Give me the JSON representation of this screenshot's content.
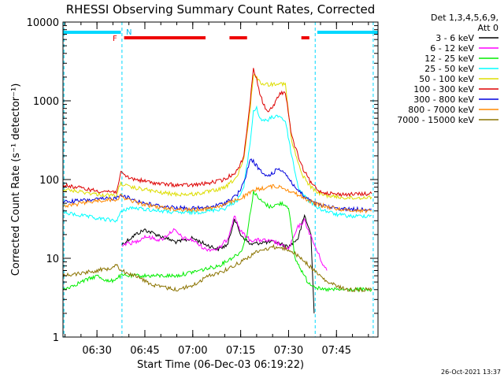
{
  "chart_data": {
    "type": "line",
    "title": "RHESSI Observing Summary Count Rates, Corrected",
    "xlabel": "Start Time (06-Dec-03 06:19:22)",
    "ylabel": "Corrected Count Rate (s⁻¹ detector⁻¹)",
    "y_scale": "log",
    "xlim": [
      "06:19:22",
      "07:58:00"
    ],
    "ylim": [
      1,
      10000
    ],
    "x_ticks": [
      "06:30",
      "06:45",
      "07:00",
      "07:15",
      "07:30",
      "07:45"
    ],
    "y_ticks": [
      "1",
      "10",
      "100",
      "1000",
      "10000"
    ],
    "legend": {
      "placement": "right",
      "header": [
        "Det 1,3,4,5,6,9,",
        "Att 0"
      ]
    },
    "timestamp": "26-Oct-2021 13:37",
    "flags": {
      "N_label": "N",
      "F_label": "F",
      "night_bars": [
        [
          "06:19:22",
          "06:37:30"
        ],
        [
          "07:39:00",
          "07:58:00"
        ]
      ],
      "flare_bars": [
        [
          "06:38:30",
          "07:04:00"
        ],
        [
          "07:11:30",
          "07:17:00"
        ],
        [
          "07:34:00",
          "07:36:30"
        ]
      ],
      "saa_lines": [
        "06:19:40",
        "06:37:50",
        "07:38:20",
        "07:56:30"
      ]
    },
    "series": [
      {
        "name": "3 - 6 keV",
        "color": "#000000",
        "points": [
          [
            "06:37:50",
            15
          ],
          [
            "06:42",
            20
          ],
          [
            "06:45",
            23
          ],
          [
            "06:50",
            19
          ],
          [
            "06:55",
            16
          ],
          [
            "07:00",
            18
          ],
          [
            "07:04",
            15
          ],
          [
            "07:08",
            13
          ],
          [
            "07:11",
            15
          ],
          [
            "07:13",
            32
          ],
          [
            "07:15",
            20
          ],
          [
            "07:18",
            15
          ],
          [
            "07:22",
            16
          ],
          [
            "07:26",
            16
          ],
          [
            "07:30",
            14
          ],
          [
            "07:33",
            18
          ],
          [
            "07:35",
            35
          ],
          [
            "07:37",
            20
          ],
          [
            "07:38",
            2
          ]
        ]
      },
      {
        "name": "6 - 12 keV",
        "color": "#ff00ff",
        "points": [
          [
            "06:37:50",
            15
          ],
          [
            "06:42",
            16
          ],
          [
            "06:45",
            19
          ],
          [
            "06:50",
            17
          ],
          [
            "06:54",
            23
          ],
          [
            "06:57",
            18
          ],
          [
            "07:00",
            17
          ],
          [
            "07:04",
            13
          ],
          [
            "07:08",
            13
          ],
          [
            "07:11",
            18
          ],
          [
            "07:13",
            35
          ],
          [
            "07:15",
            22
          ],
          [
            "07:18",
            17
          ],
          [
            "07:22",
            17
          ],
          [
            "07:26",
            16
          ],
          [
            "07:30",
            13
          ],
          [
            "07:33",
            25
          ],
          [
            "07:35",
            30
          ],
          [
            "07:38",
            15
          ],
          [
            "07:41",
            8
          ],
          [
            "07:42",
            7
          ]
        ]
      },
      {
        "name": "12 - 25 keV",
        "color": "#00ee00",
        "points": [
          [
            "06:19:22",
            4
          ],
          [
            "06:25",
            5
          ],
          [
            "06:30",
            6
          ],
          [
            "06:34",
            5
          ],
          [
            "06:37:30",
            6
          ],
          [
            "06:45",
            6
          ],
          [
            "06:55",
            6
          ],
          [
            "07:02",
            7
          ],
          [
            "07:08",
            8
          ],
          [
            "07:12",
            10
          ],
          [
            "07:15",
            12
          ],
          [
            "07:17",
            20
          ],
          [
            "07:19",
            70
          ],
          [
            "07:21",
            55
          ],
          [
            "07:24",
            45
          ],
          [
            "07:28",
            50
          ],
          [
            "07:30",
            45
          ],
          [
            "07:32",
            10
          ],
          [
            "07:36",
            5
          ],
          [
            "07:40",
            4
          ],
          [
            "07:48",
            4
          ],
          [
            "07:56",
            4
          ]
        ]
      },
      {
        "name": "25 - 50 keV",
        "color": "#00ffff",
        "points": [
          [
            "06:19:22",
            38
          ],
          [
            "06:25",
            35
          ],
          [
            "06:30",
            32
          ],
          [
            "06:36",
            30
          ],
          [
            "06:37:30",
            38
          ],
          [
            "06:40",
            44
          ],
          [
            "06:45",
            42
          ],
          [
            "06:50",
            40
          ],
          [
            "06:55",
            38
          ],
          [
            "07:00",
            38
          ],
          [
            "07:05",
            40
          ],
          [
            "07:10",
            43
          ],
          [
            "07:14",
            55
          ],
          [
            "07:16",
            80
          ],
          [
            "07:18",
            300
          ],
          [
            "07:19",
            750
          ],
          [
            "07:20",
            800
          ],
          [
            "07:21",
            600
          ],
          [
            "07:23",
            550
          ],
          [
            "07:25",
            620
          ],
          [
            "07:27",
            650
          ],
          [
            "07:29",
            550
          ],
          [
            "07:31",
            200
          ],
          [
            "07:33",
            80
          ],
          [
            "07:36",
            55
          ],
          [
            "07:40",
            42
          ],
          [
            "07:45",
            36
          ],
          [
            "07:50",
            34
          ],
          [
            "07:56",
            35
          ]
        ]
      },
      {
        "name": "50 - 100 keV",
        "color": "#dddd00",
        "points": [
          [
            "06:19:22",
            75
          ],
          [
            "06:25",
            70
          ],
          [
            "06:30",
            65
          ],
          [
            "06:36",
            62
          ],
          [
            "06:37:30",
            90
          ],
          [
            "06:40",
            80
          ],
          [
            "06:45",
            75
          ],
          [
            "06:50",
            68
          ],
          [
            "06:55",
            65
          ],
          [
            "07:00",
            65
          ],
          [
            "07:05",
            70
          ],
          [
            "07:10",
            78
          ],
          [
            "07:14",
            110
          ],
          [
            "07:16",
            180
          ],
          [
            "07:18",
            800
          ],
          [
            "07:19",
            2200
          ],
          [
            "07:20",
            2000
          ],
          [
            "07:21",
            1700
          ],
          [
            "07:24",
            1600
          ],
          [
            "07:27",
            1700
          ],
          [
            "07:29",
            1600
          ],
          [
            "07:31",
            300
          ],
          [
            "07:34",
            120
          ],
          [
            "07:37",
            80
          ],
          [
            "07:40",
            65
          ],
          [
            "07:45",
            60
          ],
          [
            "07:50",
            58
          ],
          [
            "07:56",
            60
          ]
        ]
      },
      {
        "name": "100 - 300 keV",
        "color": "#dd0000",
        "points": [
          [
            "06:19:22",
            85
          ],
          [
            "06:25",
            78
          ],
          [
            "06:30",
            72
          ],
          [
            "06:36",
            70
          ],
          [
            "06:37:30",
            120
          ],
          [
            "06:40",
            105
          ],
          [
            "06:45",
            95
          ],
          [
            "06:50",
            88
          ],
          [
            "06:55",
            85
          ],
          [
            "07:00",
            85
          ],
          [
            "07:05",
            90
          ],
          [
            "07:10",
            100
          ],
          [
            "07:14",
            130
          ],
          [
            "07:16",
            200
          ],
          [
            "07:18",
            1000
          ],
          [
            "07:19",
            2500
          ],
          [
            "07:20",
            2000
          ],
          [
            "07:21",
            1200
          ],
          [
            "07:23",
            750
          ],
          [
            "07:25",
            800
          ],
          [
            "07:27",
            1200
          ],
          [
            "07:29",
            1300
          ],
          [
            "07:31",
            350
          ],
          [
            "07:34",
            150
          ],
          [
            "07:37",
            90
          ],
          [
            "07:40",
            70
          ],
          [
            "07:45",
            65
          ],
          [
            "07:50",
            65
          ],
          [
            "07:56",
            66
          ]
        ]
      },
      {
        "name": "300 - 800 keV",
        "color": "#0000dd",
        "points": [
          [
            "06:19:22",
            52
          ],
          [
            "06:25",
            54
          ],
          [
            "06:30",
            56
          ],
          [
            "06:36",
            58
          ],
          [
            "06:37:30",
            65
          ],
          [
            "06:40",
            58
          ],
          [
            "06:45",
            50
          ],
          [
            "06:50",
            46
          ],
          [
            "06:55",
            44
          ],
          [
            "07:00",
            43
          ],
          [
            "07:05",
            44
          ],
          [
            "07:10",
            50
          ],
          [
            "07:14",
            65
          ],
          [
            "07:16",
            90
          ],
          [
            "07:18",
            180
          ],
          [
            "07:19",
            170
          ],
          [
            "07:21",
            130
          ],
          [
            "07:23",
            110
          ],
          [
            "07:25",
            120
          ],
          [
            "07:27",
            140
          ],
          [
            "07:29",
            120
          ],
          [
            "07:32",
            80
          ],
          [
            "07:35",
            60
          ],
          [
            "07:38",
            50
          ],
          [
            "07:42",
            45
          ],
          [
            "07:48",
            42
          ],
          [
            "07:56",
            42
          ]
        ]
      },
      {
        "name": "800 - 7000 keV",
        "color": "#ff8800",
        "points": [
          [
            "06:19:22",
            45
          ],
          [
            "06:25",
            50
          ],
          [
            "06:30",
            54
          ],
          [
            "06:36",
            56
          ],
          [
            "06:37:30",
            62
          ],
          [
            "06:40",
            55
          ],
          [
            "06:45",
            48
          ],
          [
            "06:50",
            44
          ],
          [
            "06:55",
            42
          ],
          [
            "07:00",
            41
          ],
          [
            "07:05",
            43
          ],
          [
            "07:10",
            48
          ],
          [
            "07:15",
            58
          ],
          [
            "07:20",
            75
          ],
          [
            "07:25",
            82
          ],
          [
            "07:28",
            80
          ],
          [
            "07:31",
            70
          ],
          [
            "07:35",
            58
          ],
          [
            "07:38",
            50
          ],
          [
            "07:42",
            45
          ],
          [
            "07:48",
            41
          ],
          [
            "07:56",
            40
          ]
        ]
      },
      {
        "name": "7000 - 15000 keV",
        "color": "#8b7300",
        "points": [
          [
            "06:19:22",
            6
          ],
          [
            "06:25",
            6.5
          ],
          [
            "06:30",
            7
          ],
          [
            "06:34",
            7.5
          ],
          [
            "06:36",
            8.5
          ],
          [
            "06:37:30",
            7
          ],
          [
            "06:42",
            6
          ],
          [
            "06:48",
            4.5
          ],
          [
            "06:55",
            4
          ],
          [
            "07:00",
            4.5
          ],
          [
            "07:05",
            6
          ],
          [
            "07:10",
            7
          ],
          [
            "07:15",
            9
          ],
          [
            "07:20",
            12
          ],
          [
            "07:25",
            14
          ],
          [
            "07:30",
            13
          ],
          [
            "07:34",
            10
          ],
          [
            "07:38",
            7
          ],
          [
            "07:42",
            5
          ],
          [
            "07:48",
            4
          ],
          [
            "07:56",
            4
          ]
        ]
      }
    ]
  }
}
